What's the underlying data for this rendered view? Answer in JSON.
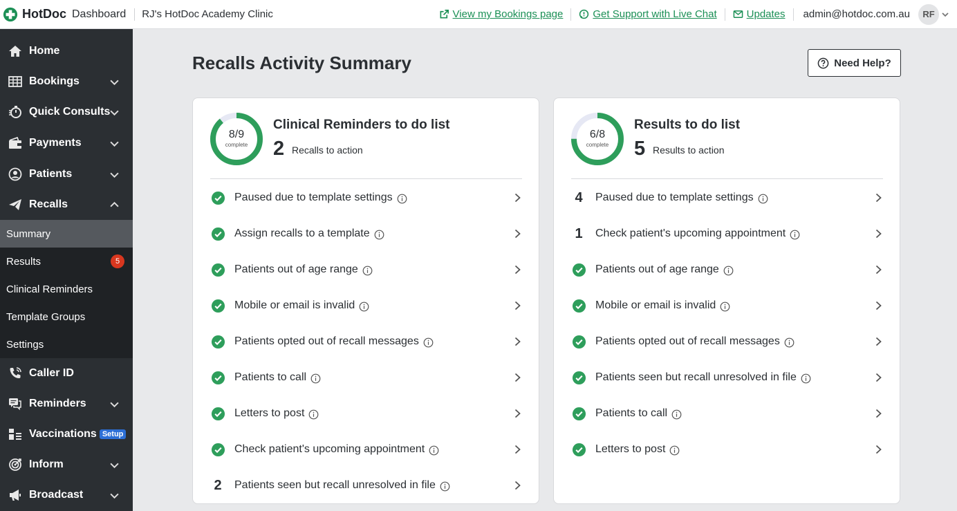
{
  "topbar": {
    "brand": "HotDoc",
    "brand_sub": "Dashboard",
    "clinic": "RJ's HotDoc Academy Clinic",
    "links": [
      {
        "label": "View my Bookings page",
        "icon": "external-link-icon"
      },
      {
        "label": "Get Support with Live Chat",
        "icon": "chat-icon"
      },
      {
        "label": "Updates",
        "icon": "mail-icon"
      }
    ],
    "admin_email": "admin@hotdoc.com.au",
    "avatar_initials": "RF"
  },
  "sidebar": {
    "items": [
      {
        "label": "Home",
        "icon": "home-icon"
      },
      {
        "label": "Bookings",
        "icon": "calendar-grid-icon"
      },
      {
        "label": "Quick Consults",
        "icon": "stopwatch-icon"
      },
      {
        "label": "Payments",
        "icon": "wallet-icon"
      },
      {
        "label": "Patients",
        "icon": "person-icon"
      },
      {
        "label": "Recalls",
        "icon": "paper-plane-icon"
      },
      {
        "label": "Caller ID",
        "icon": "phone-icon"
      },
      {
        "label": "Reminders",
        "icon": "chat-bubbles-icon"
      },
      {
        "label": "Vaccinations",
        "icon": "vaccine-icon",
        "badge": "Setup"
      },
      {
        "label": "Inform",
        "icon": "target-icon"
      },
      {
        "label": "Broadcast",
        "icon": "megaphone-icon"
      }
    ],
    "recalls_sub": [
      {
        "label": "Summary",
        "active": true
      },
      {
        "label": "Results",
        "count": "5"
      },
      {
        "label": "Clinical Reminders"
      },
      {
        "label": "Template Groups"
      },
      {
        "label": "Settings"
      }
    ]
  },
  "main": {
    "title": "Recalls Activity Summary",
    "help_label": "Need Help?"
  },
  "cards": {
    "clinical": {
      "title": "Clinical Reminders to do list",
      "progress_text": "8/9",
      "progress_done": 8,
      "progress_total": 9,
      "complete_label": "complete",
      "count": "2",
      "count_label": "Recalls to action",
      "rows": [
        {
          "label": "Paused due to template settings",
          "status": "done"
        },
        {
          "label": "Assign recalls to a template",
          "status": "done"
        },
        {
          "label": "Patients out of age range",
          "status": "done"
        },
        {
          "label": "Mobile or email is invalid",
          "status": "done"
        },
        {
          "label": "Patients opted out of recall messages",
          "status": "done"
        },
        {
          "label": "Patients to call",
          "status": "done"
        },
        {
          "label": "Letters to post",
          "status": "done"
        },
        {
          "label": "Check patient's upcoming appointment",
          "status": "done"
        },
        {
          "label": "Patients seen but recall unresolved in file",
          "status": "count",
          "count": "2"
        }
      ]
    },
    "results": {
      "title": "Results to do list",
      "progress_text": "6/8",
      "progress_done": 6,
      "progress_total": 8,
      "complete_label": "complete",
      "count": "5",
      "count_label": "Results to action",
      "rows": [
        {
          "label": "Paused due to template settings",
          "status": "count",
          "count": "4"
        },
        {
          "label": "Check patient's upcoming appointment",
          "status": "count",
          "count": "1"
        },
        {
          "label": "Patients out of age range",
          "status": "done"
        },
        {
          "label": "Mobile or email is invalid",
          "status": "done"
        },
        {
          "label": "Patients opted out of recall messages",
          "status": "done"
        },
        {
          "label": "Patients seen but recall unresolved in file",
          "status": "done"
        },
        {
          "label": "Patients to call",
          "status": "done"
        },
        {
          "label": "Letters to post",
          "status": "done"
        }
      ]
    }
  },
  "colors": {
    "brand_green": "#1b8f55",
    "check_green": "#2e9e5b",
    "donut_track": "#e6e8f4",
    "sidebar_bg": "#2b2f33",
    "badge_red": "#d8371f",
    "setup_blue": "#2c6fd6"
  }
}
